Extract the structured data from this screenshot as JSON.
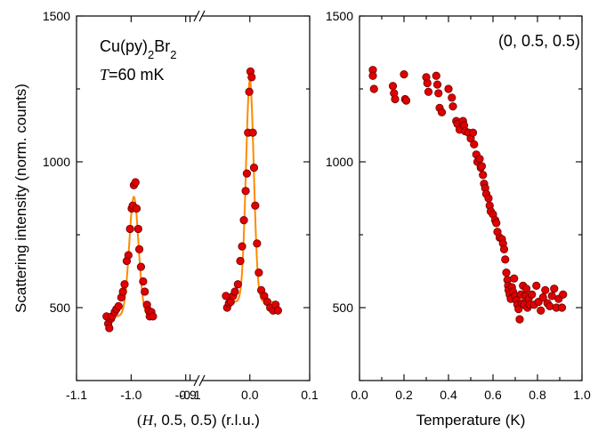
{
  "colors": {
    "points": "#e00000",
    "fit": "#ff8a00",
    "axes": "#000000"
  },
  "chart_data": [
    {
      "type": "scatter",
      "panel": "left",
      "x_broken_axis": true,
      "x_segments": [
        {
          "xlim": [
            -1.1,
            -0.88
          ],
          "ticks": [
            -1.1,
            -1.0,
            -0.9
          ],
          "tick_labels": [
            "-1.1",
            "-1.0",
            "-0.9"
          ]
        },
        {
          "xlim": [
            -0.08,
            0.1
          ],
          "ticks": [
            -0.1,
            0.0,
            0.1
          ],
          "tick_labels": [
            "-0.1",
            "0.0",
            "0.1"
          ]
        }
      ],
      "xlabel_parts": [
        "(",
        "H",
        ", 0.5, 0.5)",
        " (r.l.u.)"
      ],
      "ylabel": "Scattering intensity (norm. counts)",
      "ylim": [
        250,
        1500
      ],
      "yticks": [
        500,
        1000,
        1500
      ],
      "ytick_labels": [
        "500",
        "1000",
        "1500"
      ],
      "annotations": {
        "compound_parts": [
          "Cu(py)",
          "2",
          "Br",
          "2"
        ],
        "temp_var": "T",
        "temp_value": "=60 mK"
      },
      "series": [
        {
          "kind": "points",
          "points": [
            [
              -1.045,
              470
            ],
            [
              -1.042,
              445
            ],
            [
              -1.04,
              430
            ],
            [
              -1.037,
              462
            ],
            [
              -1.035,
              470
            ],
            [
              -1.03,
              485
            ],
            [
              -1.027,
              495
            ],
            [
              -1.023,
              505
            ],
            [
              -1.018,
              535
            ],
            [
              -1.015,
              555
            ],
            [
              -1.012,
              580
            ],
            [
              -1.008,
              660
            ],
            [
              -1.005,
              680
            ],
            [
              -1.002,
              770
            ],
            [
              -0.999,
              840
            ],
            [
              -0.997,
              850
            ],
            [
              -0.995,
              920
            ],
            [
              -0.992,
              930
            ],
            [
              -0.99,
              840
            ],
            [
              -0.987,
              770
            ],
            [
              -0.985,
              700
            ],
            [
              -0.982,
              640
            ],
            [
              -0.978,
              590
            ],
            [
              -0.975,
              555
            ],
            [
              -0.971,
              510
            ],
            [
              -0.968,
              490
            ],
            [
              -0.966,
              470
            ],
            [
              -0.963,
              485
            ],
            [
              -0.96,
              470
            ],
            [
              -0.04,
              540
            ],
            [
              -0.038,
              500
            ],
            [
              -0.035,
              515
            ],
            [
              -0.032,
              520
            ],
            [
              -0.028,
              540
            ],
            [
              -0.025,
              555
            ],
            [
              -0.02,
              580
            ],
            [
              -0.016,
              660
            ],
            [
              -0.013,
              710
            ],
            [
              -0.01,
              800
            ],
            [
              -0.007,
              900
            ],
            [
              -0.005,
              960
            ],
            [
              -0.003,
              1100
            ],
            [
              -0.001,
              1240
            ],
            [
              0.001,
              1310
            ],
            [
              0.003,
              1290
            ],
            [
              0.005,
              1100
            ],
            [
              0.007,
              980
            ],
            [
              0.009,
              850
            ],
            [
              0.012,
              720
            ],
            [
              0.015,
              620
            ],
            [
              0.019,
              560
            ],
            [
              0.024,
              540
            ],
            [
              0.029,
              520
            ],
            [
              0.034,
              500
            ],
            [
              0.039,
              490
            ],
            [
              0.043,
              510
            ],
            [
              0.047,
              490
            ]
          ]
        },
        {
          "kind": "fit",
          "peaks": [
            {
              "center": -0.995,
              "amplitude": 410,
              "sigma": 0.0085,
              "x_range": [
                -1.045,
                -0.962
              ]
            },
            {
              "center": 0.0,
              "amplitude": 760,
              "sigma": 0.0065,
              "x_range": [
                -0.04,
                0.045
              ]
            }
          ],
          "baseline": 470,
          "slope": 700,
          "reference_x": -1.045,
          "right_baseline": 520
        }
      ]
    },
    {
      "type": "scatter",
      "panel": "right",
      "xlabel": "Temperature (K)",
      "xlim": [
        0.0,
        1.0
      ],
      "xticks": [
        0.0,
        0.2,
        0.4,
        0.6,
        0.8,
        1.0
      ],
      "xtick_labels": [
        "0.0",
        "0.2",
        "0.4",
        "0.6",
        "0.8",
        "1.0"
      ],
      "ylim": [
        250,
        1500
      ],
      "yticks": [
        500,
        1000,
        1500
      ],
      "ytick_labels": [
        "1500",
        "1000",
        "500"
      ],
      "ytick_values_for_labels": [
        1500,
        1000,
        500
      ],
      "annotation": "(0, 0.5, 0.5)",
      "series": [
        {
          "kind": "points",
          "points": [
            [
              0.06,
              1315
            ],
            [
              0.06,
              1295
            ],
            [
              0.065,
              1250
            ],
            [
              0.15,
              1260
            ],
            [
              0.155,
              1235
            ],
            [
              0.16,
              1215
            ],
            [
              0.2,
              1300
            ],
            [
              0.205,
              1215
            ],
            [
              0.21,
              1210
            ],
            [
              0.3,
              1290
            ],
            [
              0.305,
              1270
            ],
            [
              0.31,
              1240
            ],
            [
              0.345,
              1295
            ],
            [
              0.35,
              1265
            ],
            [
              0.355,
              1235
            ],
            [
              0.36,
              1185
            ],
            [
              0.37,
              1170
            ],
            [
              0.4,
              1250
            ],
            [
              0.415,
              1220
            ],
            [
              0.42,
              1190
            ],
            [
              0.435,
              1140
            ],
            [
              0.44,
              1130
            ],
            [
              0.45,
              1110
            ],
            [
              0.465,
              1140
            ],
            [
              0.47,
              1125
            ],
            [
              0.475,
              1105
            ],
            [
              0.49,
              1100
            ],
            [
              0.5,
              1080
            ],
            [
              0.51,
              1100
            ],
            [
              0.515,
              1060
            ],
            [
              0.525,
              1025
            ],
            [
              0.53,
              1000
            ],
            [
              0.54,
              1010
            ],
            [
              0.545,
              980
            ],
            [
              0.55,
              985
            ],
            [
              0.555,
              955
            ],
            [
              0.56,
              925
            ],
            [
              0.565,
              910
            ],
            [
              0.57,
              890
            ],
            [
              0.58,
              875
            ],
            [
              0.585,
              850
            ],
            [
              0.59,
              830
            ],
            [
              0.6,
              820
            ],
            [
              0.61,
              800
            ],
            [
              0.615,
              790
            ],
            [
              0.62,
              760
            ],
            [
              0.63,
              740
            ],
            [
              0.64,
              735
            ],
            [
              0.645,
              720
            ],
            [
              0.65,
              700
            ],
            [
              0.655,
              665
            ],
            [
              0.66,
              620
            ],
            [
              0.665,
              595
            ],
            [
              0.668,
              575
            ],
            [
              0.67,
              560
            ],
            [
              0.675,
              545
            ],
            [
              0.68,
              530
            ],
            [
              0.685,
              570
            ],
            [
              0.69,
              555
            ],
            [
              0.695,
              600
            ],
            [
              0.7,
              540
            ],
            [
              0.705,
              525
            ],
            [
              0.71,
              510
            ],
            [
              0.715,
              495
            ],
            [
              0.72,
              460
            ],
            [
              0.725,
              545
            ],
            [
              0.73,
              515
            ],
            [
              0.735,
              575
            ],
            [
              0.74,
              510
            ],
            [
              0.745,
              540
            ],
            [
              0.75,
              565
            ],
            [
              0.755,
              500
            ],
            [
              0.76,
              530
            ],
            [
              0.765,
              510
            ],
            [
              0.775,
              545
            ],
            [
              0.785,
              510
            ],
            [
              0.795,
              575
            ],
            [
              0.805,
              520
            ],
            [
              0.815,
              490
            ],
            [
              0.825,
              535
            ],
            [
              0.835,
              560
            ],
            [
              0.845,
              515
            ],
            [
              0.855,
              505
            ],
            [
              0.865,
              540
            ],
            [
              0.875,
              565
            ],
            [
              0.885,
              500
            ],
            [
              0.895,
              530
            ],
            [
              0.91,
              500
            ],
            [
              0.915,
              545
            ]
          ]
        }
      ]
    }
  ]
}
